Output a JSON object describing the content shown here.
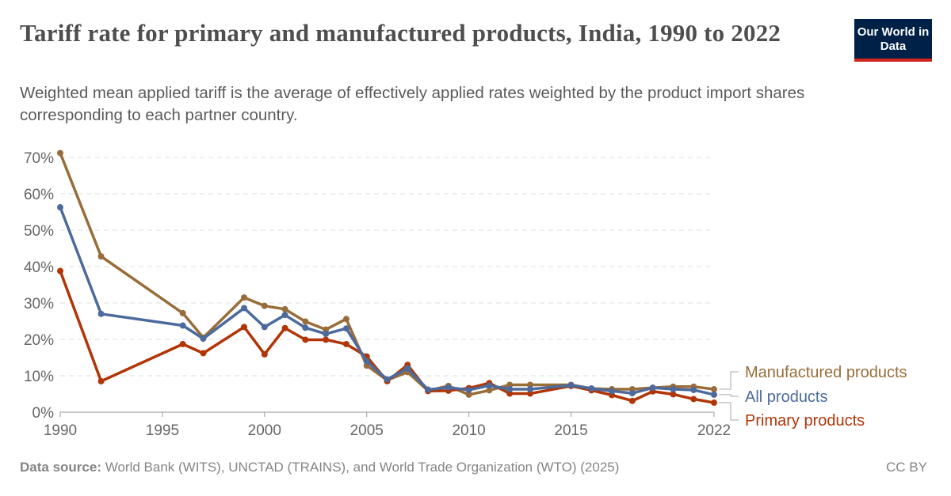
{
  "header": {
    "title": "Tariff rate for primary and manufactured products, India, 1990 to 2022",
    "subtitle": "Weighted mean applied tariff is the average of effectively applied rates weighted by the product import shares corresponding to each partner country.",
    "logo": "Our World in Data"
  },
  "footer": {
    "source_label": "Data source:",
    "source": "World Bank (WITS), UNCTAD (TRAINS), and World Trade Organization (WTO) (2025)",
    "license": "CC BY"
  },
  "chart_data": {
    "type": "line",
    "x": [
      1990,
      1992,
      1996,
      1997,
      1999,
      2000,
      2001,
      2002,
      2003,
      2004,
      2005,
      2006,
      2007,
      2008,
      2009,
      2010,
      2011,
      2012,
      2013,
      2015,
      2016,
      2017,
      2018,
      2019,
      2020,
      2021,
      2022
    ],
    "xlim": [
      1990,
      2022
    ],
    "ylim": [
      0,
      70
    ],
    "yticks": [
      0,
      10,
      20,
      30,
      40,
      50,
      60,
      70
    ],
    "ytick_labels": [
      "0%",
      "10%",
      "20%",
      "30%",
      "40%",
      "50%",
      "60%",
      "70%"
    ],
    "xticks": [
      1990,
      1995,
      2000,
      2005,
      2010,
      2015,
      2022
    ],
    "xtick_labels": [
      "1990",
      "1995",
      "2000",
      "2005",
      "2010",
      "2015",
      "2022"
    ],
    "grid": "horizontal dashed",
    "legend": "right, inline labels",
    "series": [
      {
        "name": "Primary products",
        "color": "#b13507",
        "values": [
          38.8,
          8.5,
          18.7,
          16.2,
          23.4,
          15.9,
          23.1,
          19.9,
          19.9,
          18.7,
          15.3,
          8.5,
          13,
          5.8,
          5.9,
          6.6,
          8,
          5.1,
          5.1,
          7.2,
          6,
          4.7,
          3.1,
          5.7,
          4.9,
          3.6,
          2.6
        ]
      },
      {
        "name": "Manufactured products",
        "color": "#996d39",
        "values": [
          71.2,
          42.8,
          27.2,
          20.5,
          31.5,
          29.2,
          28.3,
          24.9,
          22.7,
          25.6,
          12.8,
          8.8,
          11,
          5.9,
          7.2,
          4.8,
          6,
          7.5,
          7.5,
          7.5,
          6.5,
          6.3,
          6.3,
          6.7,
          7,
          7,
          6.3
        ]
      },
      {
        "name": "All products",
        "color": "#4c6a9c",
        "values": [
          56.3,
          27,
          23.8,
          20.2,
          28.6,
          23.4,
          26.7,
          23.2,
          21.5,
          23,
          14,
          9,
          12,
          6.2,
          6.8,
          6.1,
          7.3,
          6.3,
          6.3,
          7.4,
          6.5,
          5.8,
          5.2,
          6.7,
          6.3,
          6.1,
          4.8
        ]
      }
    ]
  }
}
